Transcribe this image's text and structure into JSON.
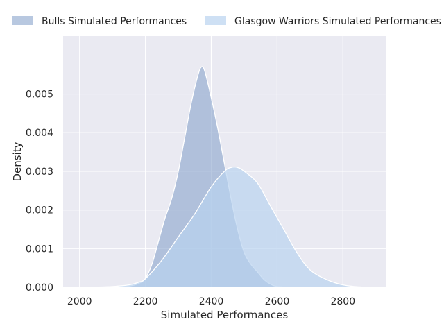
{
  "chart_data": {
    "type": "area",
    "title": "",
    "xlabel": "Simulated Performances",
    "ylabel": "Density",
    "xlim": [
      1950,
      2930
    ],
    "ylim": [
      0,
      0.0065
    ],
    "xticks": [
      2000,
      2200,
      2400,
      2600,
      2800
    ],
    "yticks": [
      0.0,
      0.001,
      0.002,
      0.003,
      0.004,
      0.005
    ],
    "ytick_labels": [
      "0.000",
      "0.001",
      "0.002",
      "0.003",
      "0.004",
      "0.005"
    ],
    "grid": true,
    "legend_position": "top",
    "series": [
      {
        "name": "Bulls Simulated Performances",
        "color": "#8ca7cd",
        "x": [
          2000,
          2100,
          2150,
          2180,
          2200,
          2220,
          2240,
          2260,
          2280,
          2300,
          2320,
          2340,
          2360,
          2370,
          2380,
          2400,
          2420,
          2440,
          2460,
          2480,
          2500,
          2520,
          2540,
          2560,
          2580,
          2600,
          2650,
          2700
        ],
        "y": [
          0.0,
          5e-06,
          3e-05,
          0.0001,
          0.00023,
          0.0006,
          0.0012,
          0.0018,
          0.0023,
          0.003,
          0.0039,
          0.0048,
          0.0055,
          0.0057,
          0.0056,
          0.0049,
          0.0041,
          0.0032,
          0.0023,
          0.0015,
          0.0009,
          0.0006,
          0.0004,
          0.0002,
          8e-05,
          2e-05,
          0.0,
          0.0
        ]
      },
      {
        "name": "Glasgow Warriors Simulated Performances",
        "color": "#b9d3ef",
        "x": [
          2000,
          2050,
          2100,
          2150,
          2180,
          2200,
          2250,
          2300,
          2350,
          2400,
          2440,
          2460,
          2480,
          2500,
          2540,
          2580,
          2620,
          2660,
          2700,
          2750,
          2800,
          2850,
          2880
        ],
        "y": [
          0.0,
          5e-06,
          2e-05,
          6e-05,
          0.00013,
          0.00022,
          0.0007,
          0.0013,
          0.0019,
          0.0026,
          0.003,
          0.0031,
          0.0031,
          0.003,
          0.0027,
          0.0021,
          0.0015,
          0.0009,
          0.00045,
          0.0002,
          6e-05,
          1e-05,
          0.0
        ]
      }
    ]
  }
}
